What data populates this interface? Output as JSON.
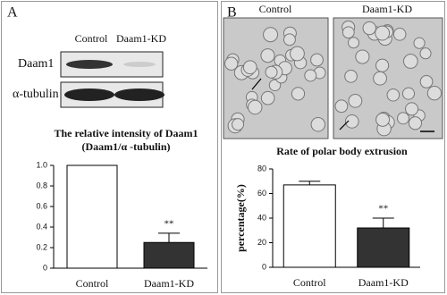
{
  "panels": {
    "a": {
      "label": "A",
      "blot": {
        "columns": [
          "Control",
          "Daam1-KD"
        ],
        "rows": [
          "Daam1",
          "α-tubulin"
        ]
      }
    },
    "b": {
      "label": "B",
      "images": [
        "Control",
        "Daam1-KD"
      ]
    }
  },
  "chart_data": [
    {
      "type": "bar",
      "title": "The relative intensity of Daam1",
      "subtitle": "(Daam1/α -tubulin)",
      "categories": [
        "Control",
        "Daam1-KD"
      ],
      "values": [
        1,
        0.25
      ],
      "errors": [
        null,
        0.09
      ],
      "annotations": [
        null,
        "**"
      ],
      "colors": [
        "#ffffff",
        "#333333"
      ],
      "ylim": [
        0,
        1
      ],
      "yticks": [
        0,
        0.2,
        0.4,
        0.6,
        0.8,
        {
          "value": 1,
          "label": "1.0"
        }
      ]
    },
    {
      "type": "bar",
      "title": "Rate of polar body extrusion",
      "y_label": "percentage(%)",
      "categories": [
        "Control",
        "Daam1-KD"
      ],
      "values": [
        67,
        32
      ],
      "errors": [
        3,
        8
      ],
      "annotations": [
        null,
        "**"
      ],
      "colors": [
        "#ffffff",
        "#333333"
      ],
      "ylim": [
        0,
        80
      ],
      "yticks": [
        0,
        20,
        40,
        60,
        80
      ]
    }
  ]
}
